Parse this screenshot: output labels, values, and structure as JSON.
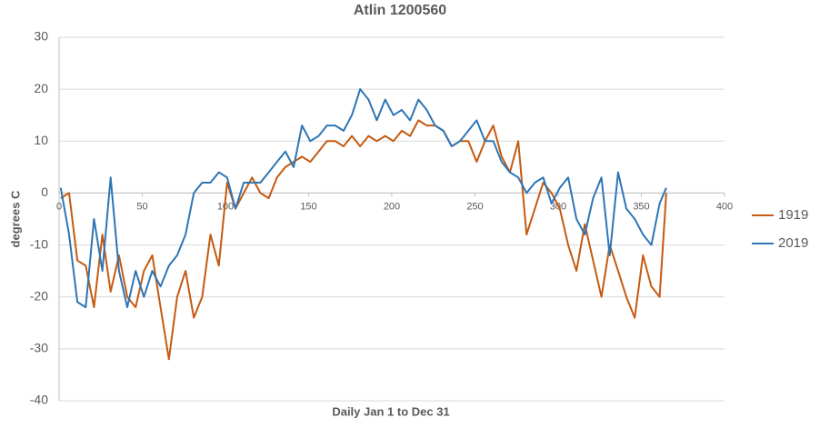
{
  "chart_data": {
    "type": "line",
    "title": "Atlin 1200560",
    "x_label": "Daily Jan 1 to Dec 31",
    "y_label": "degrees C",
    "x": [
      1,
      6,
      11,
      16,
      21,
      26,
      31,
      36,
      41,
      46,
      51,
      56,
      61,
      66,
      71,
      76,
      81,
      86,
      91,
      96,
      101,
      106,
      111,
      116,
      121,
      126,
      131,
      136,
      141,
      146,
      151,
      156,
      161,
      166,
      171,
      176,
      181,
      186,
      191,
      196,
      201,
      206,
      211,
      216,
      221,
      226,
      231,
      236,
      241,
      246,
      251,
      256,
      261,
      266,
      271,
      276,
      281,
      286,
      291,
      296,
      301,
      306,
      311,
      316,
      321,
      326,
      331,
      336,
      341,
      346,
      351,
      356,
      361,
      365
    ],
    "series": [
      {
        "name": "1919",
        "color": "#c55a11",
        "values": [
          -1,
          0,
          -13,
          -14,
          -22,
          -8,
          -19,
          -12,
          -20,
          -22,
          -15,
          -12,
          -22,
          -32,
          -20,
          -15,
          -24,
          -20,
          -8,
          -14,
          2,
          -3,
          0,
          3,
          0,
          -1,
          3,
          5,
          6,
          7,
          6,
          8,
          10,
          10,
          9,
          11,
          9,
          11,
          10,
          11,
          10,
          12,
          11,
          14,
          13,
          13,
          12,
          9,
          10,
          10,
          6,
          10,
          13,
          7,
          4,
          10,
          -8,
          -3,
          2,
          0,
          -3,
          -10,
          -15,
          -6,
          -13,
          -20,
          -10,
          -15,
          -20,
          -24,
          -12,
          -18,
          -20,
          0
        ]
      },
      {
        "name": "2019",
        "color": "#2e75b6",
        "values": [
          1,
          -8,
          -21,
          -22,
          -5,
          -15,
          3,
          -15,
          -22,
          -15,
          -20,
          -15,
          -18,
          -14,
          -12,
          -8,
          0,
          2,
          2,
          4,
          3,
          -3,
          2,
          2,
          2,
          4,
          6,
          8,
          5,
          13,
          10,
          11,
          13,
          13,
          12,
          15,
          20,
          18,
          14,
          18,
          15,
          16,
          14,
          18,
          16,
          13,
          12,
          9,
          10,
          12,
          14,
          10,
          10,
          6,
          4,
          3,
          0,
          2,
          3,
          -2,
          1,
          3,
          -5,
          -8,
          -1,
          3,
          -12,
          4,
          -3,
          -5,
          -8,
          -10,
          -2,
          1
        ]
      }
    ],
    "xlim": [
      0,
      400
    ],
    "xticks": [
      0,
      50,
      100,
      150,
      200,
      250,
      300,
      350,
      400
    ],
    "ylim": [
      -40,
      30
    ],
    "yticks": [
      -40,
      -30,
      -20,
      -10,
      0,
      10,
      20,
      30
    ],
    "grid": true,
    "legend": "right"
  }
}
